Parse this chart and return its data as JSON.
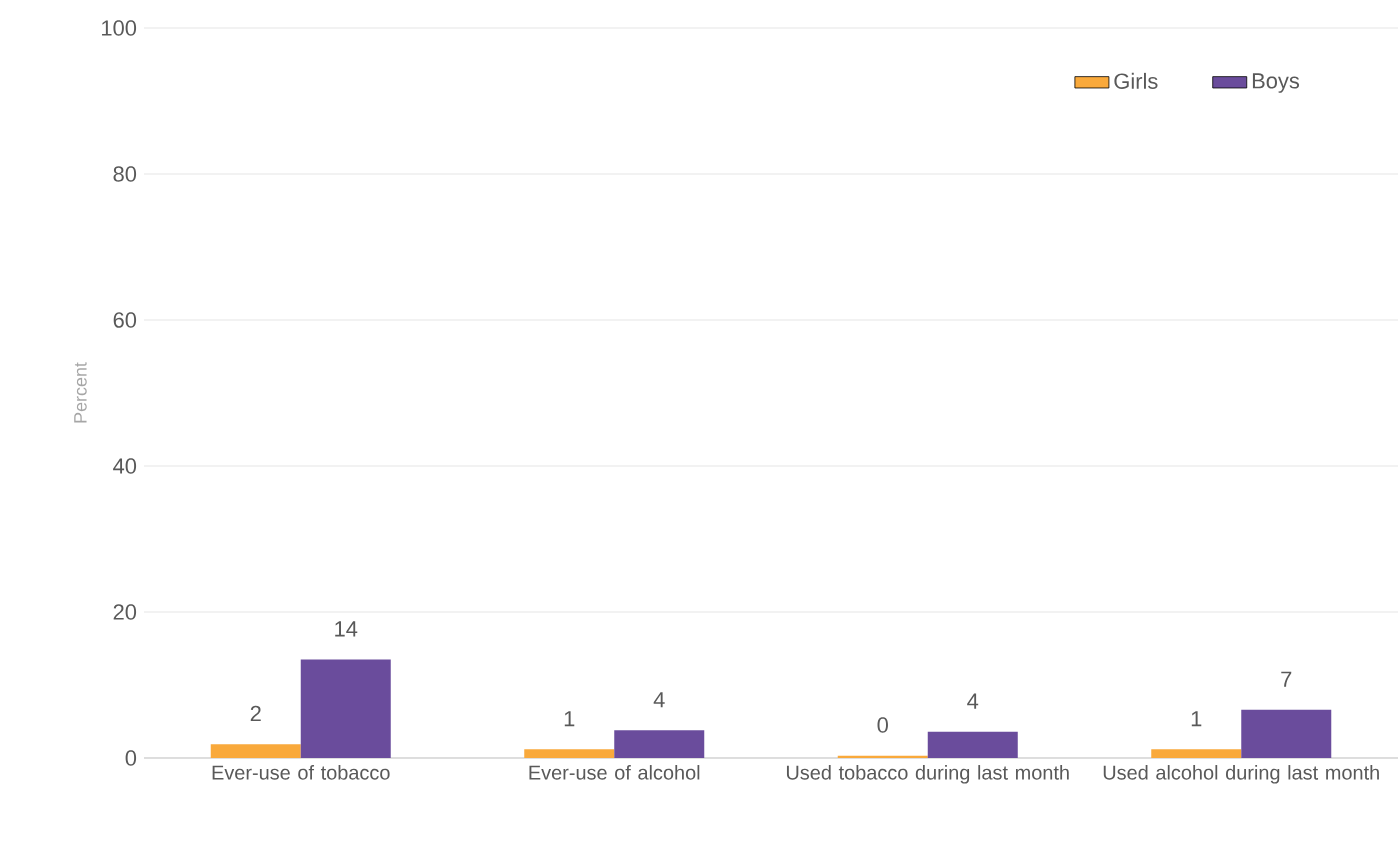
{
  "chart_data": {
    "type": "bar",
    "ylabel": "Percent",
    "categories": [
      "Ever-use of tobacco",
      "Ever-use of alcohol",
      "Used tobacco during last month",
      "Used alcohol during last month"
    ],
    "series": [
      {
        "name": "Girls",
        "color": "#f9a93b",
        "values": [
          1.9,
          1.2,
          0.3,
          1.2
        ],
        "value_labels": [
          "2",
          "1",
          "0",
          "1"
        ]
      },
      {
        "name": "Boys",
        "color": "#6a4c9c",
        "values": [
          13.5,
          3.8,
          3.6,
          6.6
        ],
        "value_labels": [
          "14",
          "4",
          "4",
          "7"
        ]
      }
    ],
    "ylim": [
      0,
      100
    ],
    "yticks": [
      0,
      20,
      40,
      60,
      80,
      100
    ],
    "grid": "y",
    "legend": "top right"
  }
}
